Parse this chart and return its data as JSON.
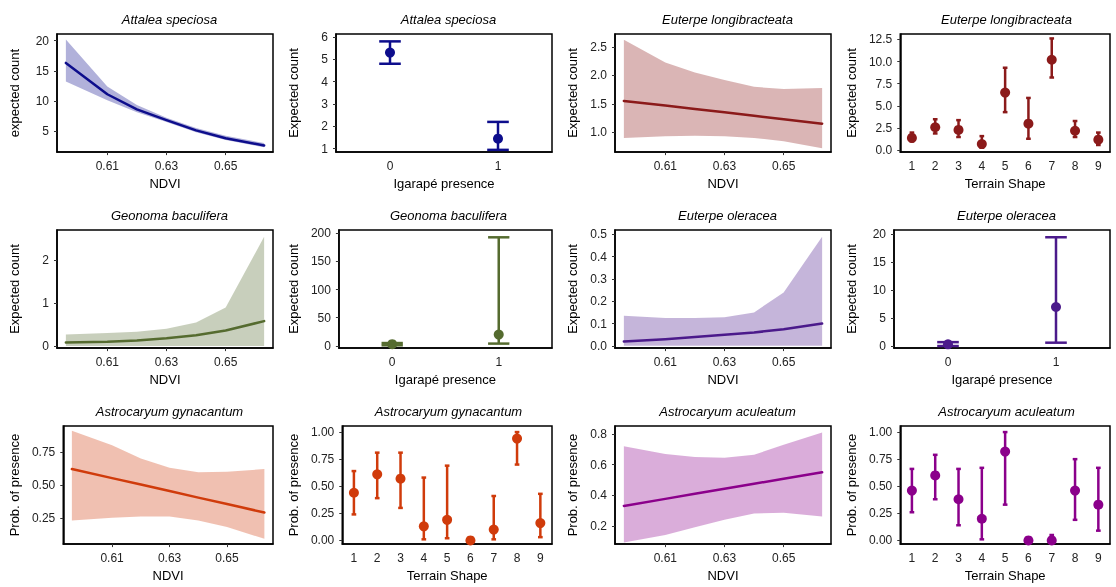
{
  "chart_data": [
    {
      "type": "line",
      "title": "Attalea speciosa",
      "xlabel": "NDVI",
      "ylabel": "expected count",
      "x": [
        0.596,
        0.61,
        0.62,
        0.63,
        0.64,
        0.65,
        0.663
      ],
      "xlim": [
        0.593,
        0.666
      ],
      "xticks": [
        0.61,
        0.63,
        0.65
      ],
      "ylim": [
        1.5,
        21.1
      ],
      "yticks": [
        5,
        10,
        15,
        20
      ],
      "marker": "none",
      "grid": false,
      "series": [
        {
          "color": "#0d0d8c",
          "values": [
            16.3,
            11.1,
            8.6,
            6.8,
            5.1,
            3.8,
            2.6
          ],
          "lower": [
            13.2,
            10.1,
            8.1,
            6.5,
            4.8,
            3.5,
            2.3
          ],
          "upper": [
            20.2,
            12.4,
            9.3,
            7.2,
            5.5,
            4.2,
            3.0
          ]
        }
      ]
    },
    {
      "type": "scatter",
      "title": "Attalea speciosa",
      "xlabel": "Igarapé presence",
      "ylabel": "Expected count",
      "categories": [
        "0",
        "1"
      ],
      "ylim": [
        0.85,
        6.13
      ],
      "yticks": [
        1,
        2,
        3,
        4,
        5,
        6
      ],
      "marker": "circle",
      "grid": false,
      "series": [
        {
          "color": "#0d0d8c",
          "values": [
            5.3,
            1.45
          ],
          "errors": [
            [
              4.8,
              5.8
            ],
            [
              0.95,
              2.2
            ]
          ]
        }
      ]
    },
    {
      "type": "line",
      "title": "Euterpe longibracteata",
      "xlabel": "NDVI",
      "ylabel": "Expected count",
      "x": [
        0.596,
        0.61,
        0.62,
        0.63,
        0.64,
        0.65,
        0.663
      ],
      "xlim": [
        0.593,
        0.666
      ],
      "xticks": [
        0.61,
        0.63,
        0.65
      ],
      "ylim": [
        0.65,
        2.73
      ],
      "yticks": [
        {
          "value": 1,
          "label": "1.0"
        },
        1.5,
        {
          "value": 2,
          "label": "2.0"
        },
        2.5
      ],
      "marker": "none",
      "grid": false,
      "series": [
        {
          "color": "#8b1a1a",
          "values": [
            1.55,
            1.47,
            1.41,
            1.35,
            1.29,
            1.23,
            1.15
          ],
          "lower": [
            0.9,
            0.93,
            0.94,
            0.93,
            0.9,
            0.84,
            0.72
          ],
          "upper": [
            2.63,
            2.23,
            2.05,
            1.92,
            1.8,
            1.76,
            1.78
          ]
        }
      ]
    },
    {
      "type": "scatter",
      "title": "Euterpe longibracteata",
      "xlabel": "Terrain Shape",
      "ylabel": "Expected count",
      "categories": [
        "1",
        "2",
        "3",
        "4",
        "5",
        "6",
        "7",
        "8",
        "9"
      ],
      "ylim": [
        -0.2,
        13.1
      ],
      "yticks": [
        {
          "value": 0,
          "label": "0.0"
        },
        2.5,
        {
          "value": 5,
          "label": "5.0"
        },
        7.5,
        {
          "value": 10,
          "label": "10.0"
        },
        12.5
      ],
      "marker": "circle",
      "grid": false,
      "series": [
        {
          "color": "#8b1a1a",
          "values": [
            1.4,
            2.6,
            2.3,
            0.7,
            6.5,
            3.0,
            10.2,
            2.2,
            1.2
          ],
          "errors": [
            [
              1.0,
              2.0
            ],
            [
              1.9,
              3.5
            ],
            [
              1.5,
              3.4
            ],
            [
              0.3,
              1.6
            ],
            [
              4.3,
              9.3
            ],
            [
              1.3,
              5.9
            ],
            [
              8.2,
              12.6
            ],
            [
              1.5,
              3.3
            ],
            [
              0.6,
              2.0
            ]
          ]
        }
      ]
    },
    {
      "type": "line",
      "title": "Geonoma baculifera",
      "xlabel": "NDVI",
      "ylabel": "Expected count",
      "x": [
        0.596,
        0.61,
        0.62,
        0.63,
        0.64,
        0.65,
        0.663
      ],
      "xlim": [
        0.593,
        0.666
      ],
      "xticks": [
        0.61,
        0.63,
        0.65
      ],
      "ylim": [
        -0.05,
        2.71
      ],
      "yticks": [
        0,
        1,
        2
      ],
      "marker": "none",
      "grid": false,
      "series": [
        {
          "color": "#556b2f",
          "values": [
            0.08,
            0.1,
            0.13,
            0.18,
            0.25,
            0.36,
            0.58
          ],
          "lower": [
            0,
            0,
            0,
            0,
            0,
            0,
            0
          ],
          "upper": [
            0.27,
            0.3,
            0.33,
            0.4,
            0.55,
            0.9,
            2.55
          ]
        }
      ]
    },
    {
      "type": "scatter",
      "title": "Geonoma baculifera",
      "xlabel": "Igarapé presence",
      "ylabel": "Expected count",
      "categories": [
        "0",
        "1"
      ],
      "ylim": [
        -4,
        206
      ],
      "yticks": [
        0,
        50,
        100,
        150,
        200
      ],
      "marker": "circle",
      "grid": false,
      "series": [
        {
          "color": "#556b2f",
          "values": [
            3,
            20
          ],
          "errors": [
            [
              1,
              5
            ],
            [
              4,
              193
            ]
          ]
        }
      ]
    },
    {
      "type": "line",
      "title": "Euterpe oleracea",
      "xlabel": "NDVI",
      "ylabel": "Expected count",
      "x": [
        0.596,
        0.61,
        0.62,
        0.63,
        0.64,
        0.65,
        0.663
      ],
      "xlim": [
        0.593,
        0.666
      ],
      "xticks": [
        0.61,
        0.63,
        0.65
      ],
      "ylim": [
        -0.01,
        0.52
      ],
      "yticks": [
        {
          "value": 0,
          "label": "0.0"
        },
        0.1,
        0.2,
        0.3,
        0.4,
        0.5
      ],
      "marker": "none",
      "grid": false,
      "series": [
        {
          "color": "#4b1a8b",
          "values": [
            0.02,
            0.03,
            0.04,
            0.05,
            0.06,
            0.075,
            0.1
          ],
          "lower": [
            0,
            0,
            0,
            0,
            0,
            0,
            0
          ],
          "upper": [
            0.135,
            0.125,
            0.125,
            0.128,
            0.15,
            0.24,
            0.49
          ]
        }
      ]
    },
    {
      "type": "scatter",
      "title": "Euterpe oleracea",
      "xlabel": "Igarapé presence",
      "ylabel": "Expected count",
      "categories": [
        "0",
        "1"
      ],
      "ylim": [
        -0.37,
        20.8
      ],
      "yticks": [
        0,
        5,
        10,
        15,
        20
      ],
      "marker": "circle",
      "grid": false,
      "series": [
        {
          "color": "#4b1a8b",
          "values": [
            0.3,
            7.0
          ],
          "errors": [
            [
              0,
              0.7
            ],
            [
              0.6,
              19.5
            ]
          ]
        }
      ]
    },
    {
      "type": "line",
      "title": "Astrocaryum gynacantum",
      "xlabel": "NDVI",
      "ylabel": "Prob. of presence",
      "x": [
        0.596,
        0.61,
        0.62,
        0.63,
        0.64,
        0.65,
        0.663
      ],
      "xlim": [
        0.593,
        0.666
      ],
      "xticks": [
        0.61,
        0.63,
        0.65
      ],
      "ylim": [
        0.05,
        0.947
      ],
      "yticks": [
        0.25,
        {
          "value": 0.5,
          "label": "0.50"
        },
        0.75
      ],
      "marker": "none",
      "grid": false,
      "series": [
        {
          "color": "#d03b0b",
          "values": [
            0.62,
            0.551,
            0.502,
            0.453,
            0.403,
            0.354,
            0.29
          ],
          "lower": [
            0.23,
            0.25,
            0.26,
            0.26,
            0.23,
            0.18,
            0.09
          ],
          "upper": [
            0.91,
            0.8,
            0.7,
            0.63,
            0.595,
            0.6,
            0.62
          ]
        }
      ]
    },
    {
      "type": "scatter",
      "title": "Astrocaryum gynacantum",
      "xlabel": "Terrain Shape",
      "ylabel": "Prob. of presence",
      "categories": [
        "1",
        "2",
        "3",
        "4",
        "5",
        "6",
        "7",
        "8",
        "9"
      ],
      "ylim": [
        -0.034,
        1.056
      ],
      "yticks": [
        {
          "value": 0,
          "label": "0.00"
        },
        0.25,
        {
          "value": 0.5,
          "label": "0.50"
        },
        0.75,
        {
          "value": 1,
          "label": "1.00"
        }
      ],
      "marker": "circle",
      "grid": false,
      "series": [
        {
          "color": "#d03b0b",
          "values": [
            0.44,
            0.61,
            0.57,
            0.13,
            0.19,
            0.0,
            0.1,
            0.94,
            0.16
          ],
          "errors": [
            [
              0.24,
              0.64
            ],
            [
              0.39,
              0.81
            ],
            [
              0.3,
              0.81
            ],
            [
              0.01,
              0.58
            ],
            [
              0.02,
              0.69
            ],
            null,
            [
              0.01,
              0.41
            ],
            [
              0.7,
              1.0
            ],
            [
              0.03,
              0.43
            ]
          ]
        }
      ]
    },
    {
      "type": "line",
      "title": "Astrocaryum aculeatum",
      "xlabel": "NDVI",
      "ylabel": "Prob. of presence",
      "x": [
        0.596,
        0.61,
        0.62,
        0.63,
        0.64,
        0.65,
        0.663
      ],
      "xlim": [
        0.593,
        0.666
      ],
      "xticks": [
        0.61,
        0.63,
        0.65
      ],
      "ylim": [
        0.08,
        0.853
      ],
      "yticks": [
        0.2,
        0.4,
        0.6,
        0.8
      ],
      "marker": "none",
      "grid": false,
      "series": [
        {
          "color": "#8b008b",
          "values": [
            0.33,
            0.376,
            0.409,
            0.442,
            0.475,
            0.508,
            0.55
          ],
          "lower": [
            0.09,
            0.14,
            0.19,
            0.24,
            0.28,
            0.285,
            0.26
          ],
          "upper": [
            0.72,
            0.67,
            0.65,
            0.645,
            0.665,
            0.73,
            0.81
          ]
        }
      ]
    },
    {
      "type": "scatter",
      "title": "Astrocaryum aculeatum",
      "xlabel": "Terrain Shape",
      "ylabel": "Prob. of presence",
      "categories": [
        "1",
        "2",
        "3",
        "4",
        "5",
        "6",
        "7",
        "8",
        "9"
      ],
      "ylim": [
        -0.034,
        1.056
      ],
      "yticks": [
        {
          "value": 0,
          "label": "0.00"
        },
        0.25,
        {
          "value": 0.5,
          "label": "0.50"
        },
        0.75,
        {
          "value": 1,
          "label": "1.00"
        }
      ],
      "marker": "circle",
      "grid": false,
      "series": [
        {
          "color": "#8b008b",
          "values": [
            0.46,
            0.6,
            0.38,
            0.2,
            0.82,
            0.0,
            0.0,
            0.46,
            0.33
          ],
          "errors": [
            [
              0.26,
              0.66
            ],
            [
              0.38,
              0.79
            ],
            [
              0.14,
              0.66
            ],
            [
              0.01,
              0.67
            ],
            [
              0.33,
              1.0
            ],
            null,
            [
              0,
              0.05
            ],
            [
              0.19,
              0.75
            ],
            [
              0.09,
              0.67
            ]
          ]
        }
      ]
    }
  ]
}
